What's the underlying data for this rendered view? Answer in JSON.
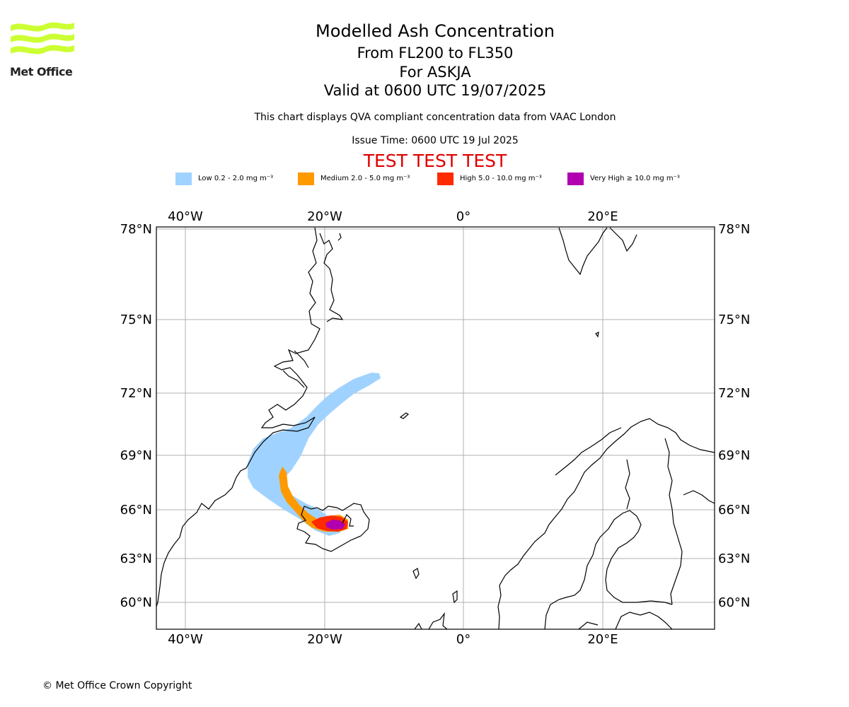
{
  "logo": {
    "text": "Met Office",
    "color": "#ccff33"
  },
  "header": {
    "title": "Modelled Ash Concentration",
    "levels": "From FL200 to FL350",
    "volcano": "For ASKJA",
    "valid": "Valid at 0600 UTC 19/07/2025",
    "subtitle": "This chart displays QVA compliant concentration data from VAAC London",
    "issue_time": "Issue Time: 0600 UTC 19 Jul 2025",
    "test_banner": "TEST TEST TEST"
  },
  "legend": [
    {
      "label": "Low 0.2 - 2.0 mg m⁻³",
      "color": "#a0d2ff"
    },
    {
      "label": "Medium 2.0 - 5.0 mg m⁻³",
      "color": "#ff9900"
    },
    {
      "label": "High 5.0 - 10.0 mg m⁻³",
      "color": "#ff2a00"
    },
    {
      "label": "Very High ≥ 10.0 mg m⁻³",
      "color": "#b000b0"
    }
  ],
  "map": {
    "lon_labels": [
      "40°W",
      "20°W",
      "0°",
      "20°E"
    ],
    "lat_labels": [
      "78°N",
      "75°N",
      "72°N",
      "69°N",
      "66°N",
      "63°N",
      "60°N"
    ]
  },
  "footer": {
    "copyright": "© Met Office Crown Copyright"
  }
}
